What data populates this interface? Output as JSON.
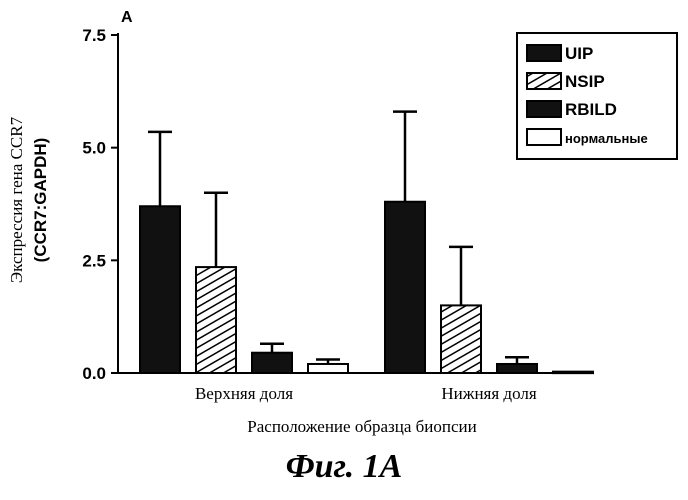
{
  "panel_label": "A",
  "figure_caption": "Фиг. 1А",
  "chart_data": {
    "type": "bar",
    "categories": [
      "Верхняя доля",
      "Нижняя доля"
    ],
    "series": [
      {
        "name": "UIP",
        "values": [
          3.7,
          3.8
        ],
        "errors": [
          1.65,
          2.0
        ]
      },
      {
        "name": "NSIP",
        "values": [
          2.35,
          1.5
        ],
        "errors": [
          1.65,
          1.3
        ]
      },
      {
        "name": "RBILD",
        "values": [
          0.45,
          0.2
        ],
        "errors": [
          0.2,
          0.15
        ]
      },
      {
        "name": "нормальные",
        "values": [
          0.2,
          0.03
        ],
        "errors": [
          0.1,
          0.0
        ]
      }
    ],
    "xlabel": "Расположение образца биопсии",
    "ylabel_line1": "Экспрессия гена CCR7",
    "ylabel_line2": "(CCR7:GAPDH)",
    "yticks": [
      "0.0",
      "2.5",
      "5.0",
      "7.5"
    ],
    "ylim": [
      0,
      7.5
    ],
    "grid": false,
    "legend_position": "top-right"
  }
}
